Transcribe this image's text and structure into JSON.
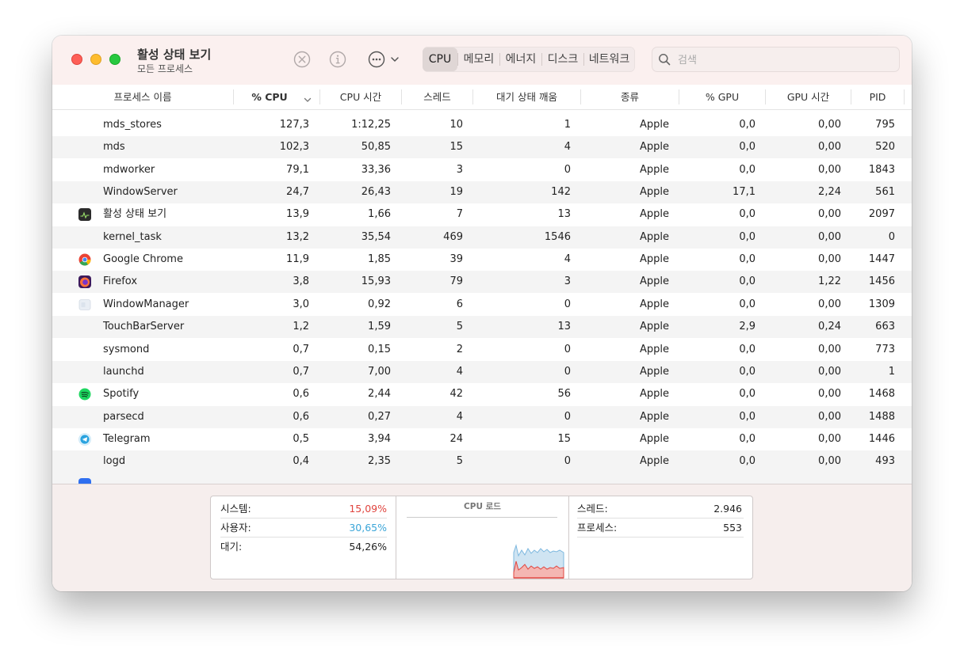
{
  "window": {
    "title": "활성 상태 보기",
    "subtitle": "모든 프로세스"
  },
  "toolbar": {
    "icons": [
      "stop-process-icon",
      "info-icon",
      "more-options-icon"
    ],
    "tabs": [
      "CPU",
      "메모리",
      "에너지",
      "디스크",
      "네트워크"
    ],
    "active_tab": "CPU",
    "search_placeholder": "검색",
    "search_value": ""
  },
  "columns": [
    "프로세스 이름",
    "% CPU",
    "CPU 시간",
    "스레드",
    "대기 상태 깨움",
    "종류",
    "% GPU",
    "GPU 시간",
    "PID"
  ],
  "sorted_column": "% CPU",
  "processes": [
    {
      "name": "mds_stores",
      "cpu": "127,3",
      "cpu_time": "1:12,25",
      "threads": "10",
      "wakeups": "1",
      "kind": "Apple",
      "gpu": "0,0",
      "gpu_time": "0,00",
      "pid": "795",
      "icon": ""
    },
    {
      "name": "mds",
      "cpu": "102,3",
      "cpu_time": "50,85",
      "threads": "15",
      "wakeups": "4",
      "kind": "Apple",
      "gpu": "0,0",
      "gpu_time": "0,00",
      "pid": "520",
      "icon": ""
    },
    {
      "name": "mdworker",
      "cpu": "79,1",
      "cpu_time": "33,36",
      "threads": "3",
      "wakeups": "0",
      "kind": "Apple",
      "gpu": "0,0",
      "gpu_time": "0,00",
      "pid": "1843",
      "icon": ""
    },
    {
      "name": "WindowServer",
      "cpu": "24,7",
      "cpu_time": "26,43",
      "threads": "19",
      "wakeups": "142",
      "kind": "Apple",
      "gpu": "17,1",
      "gpu_time": "2,24",
      "pid": "561",
      "icon": ""
    },
    {
      "name": "활성 상태 보기",
      "cpu": "13,9",
      "cpu_time": "1,66",
      "threads": "7",
      "wakeups": "13",
      "kind": "Apple",
      "gpu": "0,0",
      "gpu_time": "0,00",
      "pid": "2097",
      "icon": "activity-monitor-icon"
    },
    {
      "name": "kernel_task",
      "cpu": "13,2",
      "cpu_time": "35,54",
      "threads": "469",
      "wakeups": "1546",
      "kind": "Apple",
      "gpu": "0,0",
      "gpu_time": "0,00",
      "pid": "0",
      "icon": ""
    },
    {
      "name": "Google Chrome",
      "cpu": "11,9",
      "cpu_time": "1,85",
      "threads": "39",
      "wakeups": "4",
      "kind": "Apple",
      "gpu": "0,0",
      "gpu_time": "0,00",
      "pid": "1447",
      "icon": "chrome-icon"
    },
    {
      "name": "Firefox",
      "cpu": "3,8",
      "cpu_time": "15,93",
      "threads": "79",
      "wakeups": "3",
      "kind": "Apple",
      "gpu": "0,0",
      "gpu_time": "1,22",
      "pid": "1456",
      "icon": "firefox-icon"
    },
    {
      "name": "WindowManager",
      "cpu": "3,0",
      "cpu_time": "0,92",
      "threads": "6",
      "wakeups": "0",
      "kind": "Apple",
      "gpu": "0,0",
      "gpu_time": "0,00",
      "pid": "1309",
      "icon": "window-manager-icon"
    },
    {
      "name": "TouchBarServer",
      "cpu": "1,2",
      "cpu_time": "1,59",
      "threads": "5",
      "wakeups": "13",
      "kind": "Apple",
      "gpu": "2,9",
      "gpu_time": "0,24",
      "pid": "663",
      "icon": ""
    },
    {
      "name": "sysmond",
      "cpu": "0,7",
      "cpu_time": "0,15",
      "threads": "2",
      "wakeups": "0",
      "kind": "Apple",
      "gpu": "0,0",
      "gpu_time": "0,00",
      "pid": "773",
      "icon": ""
    },
    {
      "name": "launchd",
      "cpu": "0,7",
      "cpu_time": "7,00",
      "threads": "4",
      "wakeups": "0",
      "kind": "Apple",
      "gpu": "0,0",
      "gpu_time": "0,00",
      "pid": "1",
      "icon": ""
    },
    {
      "name": "Spotify",
      "cpu": "0,6",
      "cpu_time": "2,44",
      "threads": "42",
      "wakeups": "56",
      "kind": "Apple",
      "gpu": "0,0",
      "gpu_time": "0,00",
      "pid": "1468",
      "icon": "spotify-icon"
    },
    {
      "name": "parsecd",
      "cpu": "0,6",
      "cpu_time": "0,27",
      "threads": "4",
      "wakeups": "0",
      "kind": "Apple",
      "gpu": "0,0",
      "gpu_time": "0,00",
      "pid": "1488",
      "icon": ""
    },
    {
      "name": "Telegram",
      "cpu": "0,5",
      "cpu_time": "3,94",
      "threads": "24",
      "wakeups": "15",
      "kind": "Apple",
      "gpu": "0,0",
      "gpu_time": "0,00",
      "pid": "1446",
      "icon": "telegram-icon"
    },
    {
      "name": "logd",
      "cpu": "0,4",
      "cpu_time": "2,35",
      "threads": "5",
      "wakeups": "0",
      "kind": "Apple",
      "gpu": "0,0",
      "gpu_time": "0,00",
      "pid": "493",
      "icon": ""
    }
  ],
  "footer": {
    "system_label": "시스템:",
    "system_value": "15,09%",
    "user_label": "사용자:",
    "user_value": "30,65%",
    "idle_label": "대기:",
    "idle_value": "54,26%",
    "graph_title": "CPU 로드",
    "threads_label": "스레드:",
    "threads_value": "2.946",
    "processes_label": "프로세스:",
    "processes_value": "553"
  },
  "colors": {
    "system": "#e0443e",
    "user": "#3aa5d8",
    "window_tint": "#fbf0ef"
  }
}
